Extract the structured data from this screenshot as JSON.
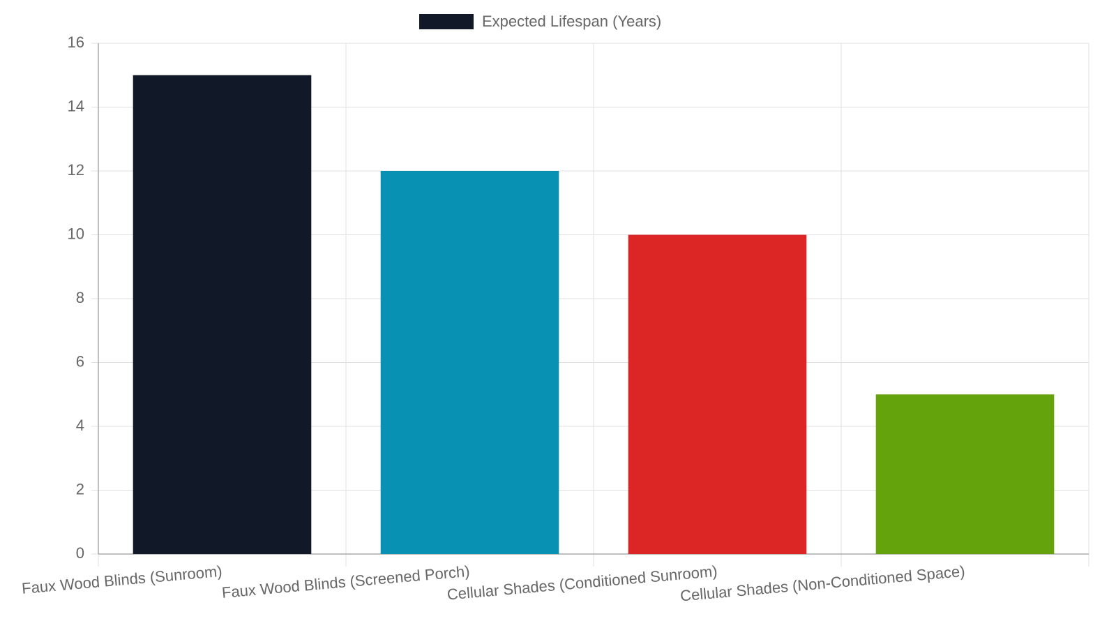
{
  "chart_data": {
    "type": "bar",
    "categories": [
      "Faux Wood Blinds (Sunroom)",
      "Faux Wood Blinds (Screened Porch)",
      "Cellular Shades (Conditioned Sunroom)",
      "Cellular Shades (Non-Conditioned Space)"
    ],
    "series": [
      {
        "name": "Expected Lifespan (Years)",
        "colors": [
          "#111827",
          "#0891b2",
          "#dc2626",
          "#65a30d"
        ],
        "values": [
          15,
          12,
          10,
          5
        ]
      }
    ],
    "ylim": [
      0,
      16
    ],
    "yticks": [
      0,
      2,
      4,
      6,
      8,
      10,
      12,
      14,
      16
    ],
    "grid": true,
    "legend": "top"
  }
}
